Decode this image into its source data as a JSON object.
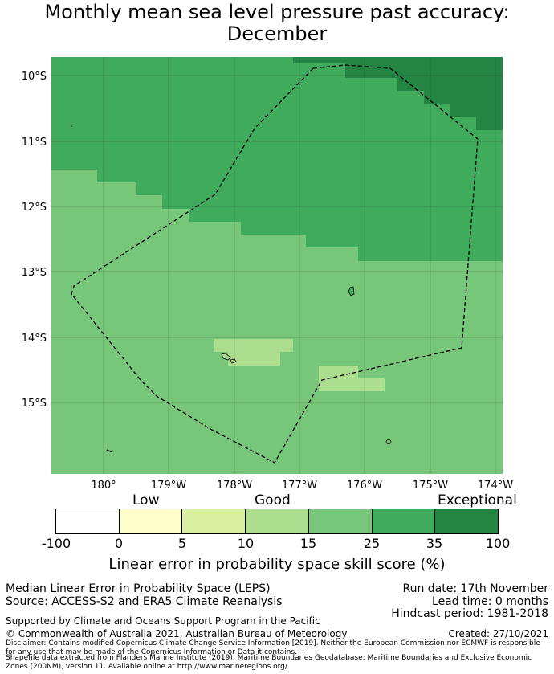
{
  "title": {
    "line1": "Monthly mean sea level pressure past accuracy:",
    "line2": "December"
  },
  "map": {
    "lat_ticks": [
      "10°S",
      "11°S",
      "12°S",
      "13°S",
      "14°S",
      "15°S"
    ],
    "lon_ticks": [
      "180°",
      "179°W",
      "178°W",
      "177°W",
      "176°W",
      "175°W",
      "174°W"
    ],
    "boundary_icon": "eez-dashed-boundary-icon"
  },
  "colorbar": {
    "categories": [
      "Low",
      "Good",
      "Exceptional"
    ],
    "ticks": [
      "-100",
      "0",
      "5",
      "10",
      "15",
      "25",
      "35",
      "100"
    ],
    "colors": [
      "#ffffff",
      "#ffffcc",
      "#d9f0a3",
      "#addd8e",
      "#78c679",
      "#41ab5d",
      "#238443"
    ],
    "label": "Linear error in probability space skill score (%)"
  },
  "footer": {
    "method": "Median Linear Error in Probability Space (LEPS)",
    "source": "Source: ACCESS-S2 and ERA5 Climate Reanalysis",
    "run_date": "Run date: 17th November",
    "lead_time": "Lead time: 0 months",
    "hindcast": "Hindcast period: 1981-2018",
    "supported": "Supported by Climate and Oceans Support Program in the Pacific",
    "copyright": "© Commonwealth of Australia 2021, Australian Bureau of Meteorology",
    "created": "Created: 27/10/2021",
    "disclaimer": "Disclaimer: Contains modified Copernicus Climate Change Service Information [2019]. Neither the European Commission nor ECMWF is responsible for any use that may be made of the Copernicus Information or Data it contains.",
    "shapefile": "Shapefile data extracted from Flanders Marine Institute (2019). Maritime Boundaries Geodatabase: Maritime Boundaries and Exclusive Economic Zones (200NM), version 11. Available online at http://www.marineregions.org/."
  }
}
